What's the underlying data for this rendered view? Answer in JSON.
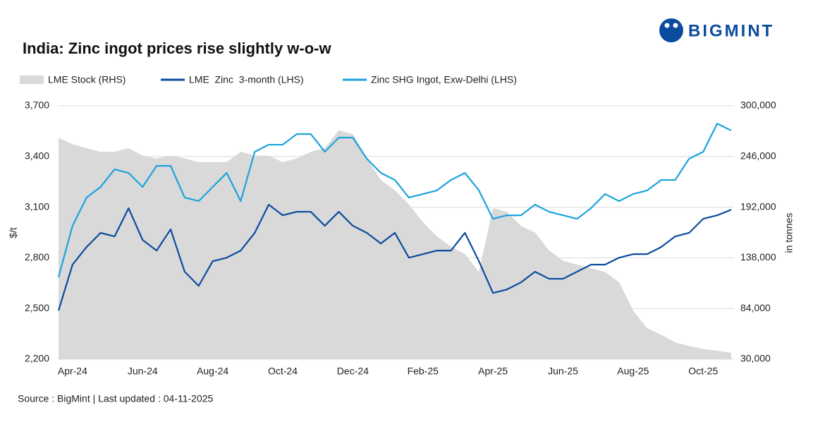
{
  "brand": "BIGMINT",
  "chart_data": {
    "type": "line",
    "title": "India: Zinc ingot prices rise slightly w-o-w",
    "source": "Source : BigMint | Last updated : 04-11-2025",
    "ylabel": "$/t",
    "y2label": "in tonnes",
    "categories": [
      null,
      "Apr-24",
      null,
      null,
      null,
      null,
      "Jun-24",
      null,
      null,
      null,
      null,
      "Aug-24",
      null,
      null,
      null,
      null,
      "Oct-24",
      null,
      null,
      null,
      null,
      "Dec-24",
      null,
      null,
      null,
      null,
      "Feb-25",
      null,
      null,
      null,
      null,
      "Apr-25",
      null,
      null,
      null,
      null,
      "Jun-25",
      null,
      null,
      null,
      null,
      "Aug-25",
      null,
      null,
      null,
      null,
      "Oct-25",
      null,
      null
    ],
    "series": [
      {
        "name": "LME Stock (RHS)",
        "kind": "area",
        "axis": "y2",
        "color": "#d9d9d9",
        "values": [
          266000,
          259000,
          255000,
          251000,
          251000,
          255000,
          247000,
          244000,
          247000,
          244000,
          240000,
          240000,
          240000,
          251000,
          247000,
          247000,
          240000,
          244000,
          251000,
          255000,
          274000,
          270000,
          244000,
          221000,
          210000,
          195000,
          176000,
          161000,
          150000,
          142000,
          123000,
          191000,
          187000,
          172000,
          165000,
          146000,
          135000,
          131000,
          127000,
          123000,
          112000,
          82000,
          63000,
          56000,
          48000,
          44000,
          41000,
          39000,
          37000
        ]
      },
      {
        "name": "LME  Zinc  3-month (LHS)",
        "kind": "line",
        "color": "#0b4b9e",
        "values": [
          2488,
          2760,
          2864,
          2948,
          2927,
          3094,
          2906,
          2843,
          2969,
          2718,
          2634,
          2780,
          2801,
          2843,
          2948,
          3115,
          3052,
          3073,
          3073,
          2990,
          3073,
          2990,
          2948,
          2885,
          2948,
          2801,
          2822,
          2843,
          2843,
          2948,
          2780,
          2592,
          2613,
          2655,
          2718,
          2676,
          2676,
          2718,
          2760,
          2760,
          2801,
          2822,
          2822,
          2864,
          2927,
          2948,
          3031,
          3052,
          3085
        ]
      },
      {
        "name": "Zinc SHG Ingot, Exw-Delhi (LHS)",
        "kind": "line",
        "color": "#1aa3dc",
        "values": [
          2685,
          2990,
          3157,
          3220,
          3324,
          3303,
          3220,
          3345,
          3345,
          3157,
          3136,
          3220,
          3303,
          3136,
          3428,
          3470,
          3470,
          3533,
          3533,
          3428,
          3512,
          3512,
          3387,
          3303,
          3261,
          3157,
          3178,
          3199,
          3261,
          3303,
          3199,
          3031,
          3052,
          3052,
          3115,
          3073,
          3052,
          3031,
          3094,
          3178,
          3136,
          3178,
          3199,
          3261,
          3261,
          3387,
          3428,
          3595,
          3554
        ]
      }
    ],
    "ylim": [
      2200,
      3700
    ],
    "yticks": [
      {
        "value": 2200,
        "label": "2,200"
      },
      {
        "value": 2500,
        "label": "2,500"
      },
      {
        "value": 2800,
        "label": "2,800"
      },
      {
        "value": 3100,
        "label": "3,100"
      },
      {
        "value": 3400,
        "label": "3,400"
      },
      {
        "value": 3700,
        "label": "3,700"
      }
    ],
    "y2lim": [
      30000,
      300000
    ],
    "y2ticks": [
      {
        "value": 30000,
        "label": "30,000"
      },
      {
        "value": 84000,
        "label": "84,000"
      },
      {
        "value": 138000,
        "label": "138,000"
      },
      {
        "value": 192000,
        "label": "192,000"
      },
      {
        "value": 246000,
        "label": "246,000"
      },
      {
        "value": 300000,
        "label": "300,000"
      }
    ],
    "grid": true
  }
}
